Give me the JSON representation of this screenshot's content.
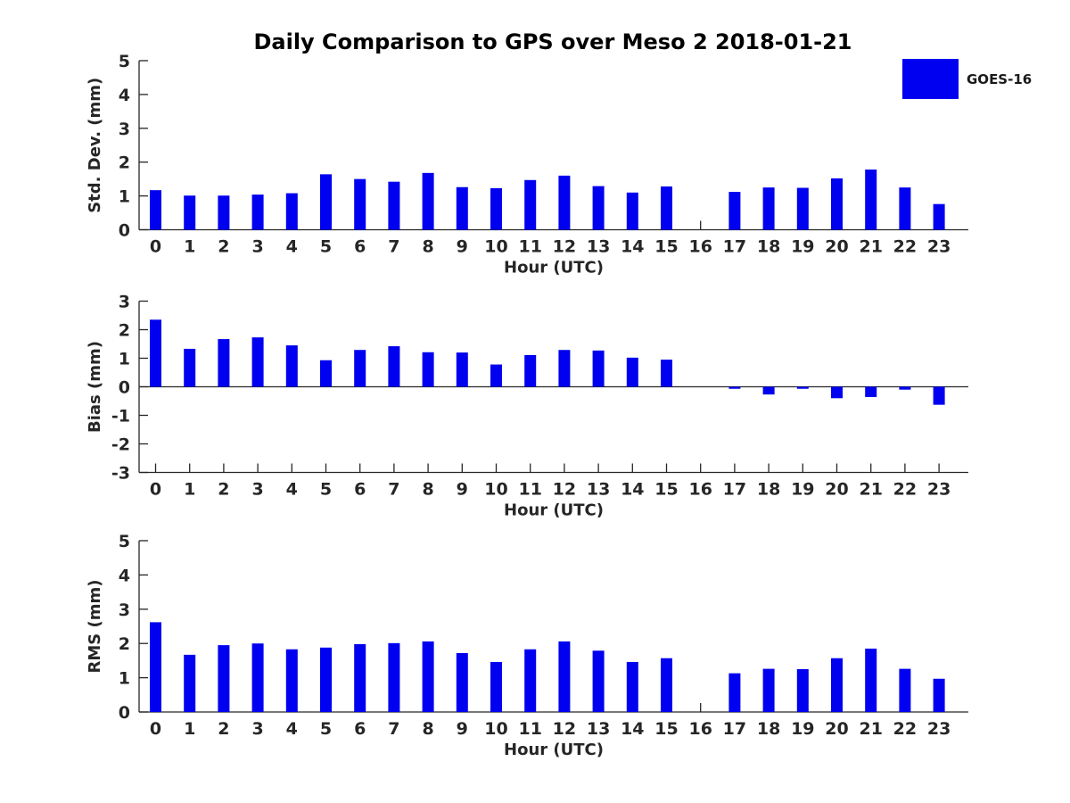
{
  "title": "Daily Comparison to GPS over Meso 2 2018-01-21",
  "legend": {
    "label": "GOES-16",
    "color": "#0000F0"
  },
  "chart_data": [
    {
      "type": "bar",
      "title": "",
      "ylabel": "Std. Dev. (mm)",
      "xlabel": "Hour (UTC)",
      "ylim": [
        0,
        5
      ],
      "yticks": [
        0,
        1,
        2,
        3,
        4,
        5
      ],
      "grid": false,
      "legend_position": "upper-right-outside",
      "categories": [
        "0",
        "1",
        "2",
        "3",
        "4",
        "5",
        "6",
        "7",
        "8",
        "9",
        "10",
        "11",
        "12",
        "13",
        "14",
        "15",
        "16",
        "17",
        "18",
        "19",
        "20",
        "21",
        "22",
        "23"
      ],
      "series": [
        {
          "name": "GOES-16",
          "values": [
            1.17,
            1.01,
            1.01,
            1.04,
            1.08,
            1.64,
            1.5,
            1.42,
            1.68,
            1.26,
            1.23,
            1.47,
            1.6,
            1.29,
            1.1,
            1.28,
            null,
            1.12,
            1.25,
            1.24,
            1.52,
            1.78,
            1.25,
            0.76
          ]
        }
      ],
      "bar_color": "#0000F0",
      "missing_categories": [
        "16"
      ]
    },
    {
      "type": "bar",
      "title": "",
      "ylabel": "Bias (mm)",
      "xlabel": "Hour (UTC)",
      "ylim": [
        -3,
        3
      ],
      "yticks": [
        -3,
        -2,
        -1,
        0,
        1,
        2,
        3
      ],
      "grid": false,
      "categories": [
        "0",
        "1",
        "2",
        "3",
        "4",
        "5",
        "6",
        "7",
        "8",
        "9",
        "10",
        "11",
        "12",
        "13",
        "14",
        "15",
        "16",
        "17",
        "18",
        "19",
        "20",
        "21",
        "22",
        "23"
      ],
      "series": [
        {
          "name": "GOES-16",
          "values": [
            2.35,
            1.33,
            1.67,
            1.73,
            1.45,
            0.93,
            1.29,
            1.42,
            1.21,
            1.2,
            0.78,
            1.11,
            1.29,
            1.27,
            1.02,
            0.95,
            null,
            -0.07,
            -0.27,
            -0.07,
            -0.4,
            -0.36,
            -0.1,
            -0.63
          ]
        }
      ],
      "bar_color": "#0000F0",
      "missing_categories": [
        "16"
      ]
    },
    {
      "type": "bar",
      "title": "",
      "ylabel": "RMS (mm)",
      "xlabel": "Hour (UTC)",
      "ylim": [
        0,
        5
      ],
      "yticks": [
        0,
        1,
        2,
        3,
        4,
        5
      ],
      "grid": false,
      "categories": [
        "0",
        "1",
        "2",
        "3",
        "4",
        "5",
        "6",
        "7",
        "8",
        "9",
        "10",
        "11",
        "12",
        "13",
        "14",
        "15",
        "16",
        "17",
        "18",
        "19",
        "20",
        "21",
        "22",
        "23"
      ],
      "series": [
        {
          "name": "GOES-16",
          "values": [
            2.62,
            1.67,
            1.95,
            2.0,
            1.83,
            1.88,
            1.98,
            2.01,
            2.06,
            1.72,
            1.46,
            1.83,
            2.06,
            1.79,
            1.46,
            1.57,
            null,
            1.13,
            1.26,
            1.25,
            1.57,
            1.85,
            1.26,
            0.97
          ]
        }
      ],
      "bar_color": "#0000F0",
      "missing_categories": [
        "16"
      ]
    }
  ]
}
